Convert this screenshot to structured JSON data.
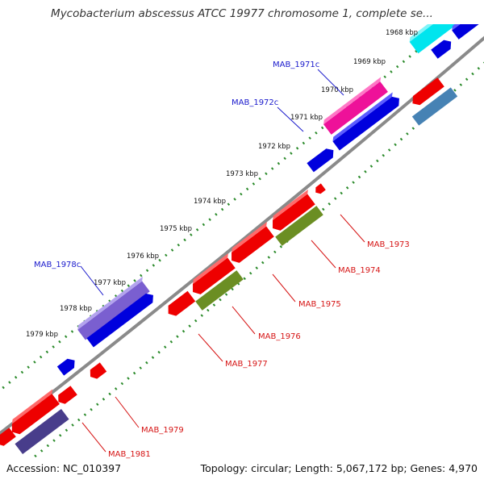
{
  "title": "Mycobacterium abscessus ATCC 19977 chromosome 1, complete se...",
  "footer": {
    "accession": "Accession: NC_010397",
    "stats": "Topology: circular; Length: 5,067,172 bp; Genes: 4,970"
  },
  "ticks": [
    "1968 kbp",
    "1969 kbp",
    "1970 kbp",
    "1971 kbp",
    "1972 kbp",
    "1973 kbp",
    "1974 kbp",
    "1975 kbp",
    "1976 kbp",
    "1977 kbp",
    "1978 kbp",
    "1979 kbp"
  ],
  "genes_forward": [
    "MAB_1971c",
    "MAB_1972c",
    "MAB_1978c"
  ],
  "genes_reverse": [
    "MAB_1973",
    "MAB_1974",
    "MAB_1975",
    "MAB_1976",
    "MAB_1977",
    "MAB_1979",
    "MAB_1981"
  ],
  "colors": {
    "backbone": "#888888",
    "dots": "#2a8a2a",
    "red": "#ee0000",
    "blue": "#0000dd",
    "cyan": "#00e5ee",
    "magenta": "#ee1199",
    "purple": "#7a5fd0",
    "navy": "#483d8b",
    "olive": "#6b8e23",
    "steel": "#4682b4"
  }
}
